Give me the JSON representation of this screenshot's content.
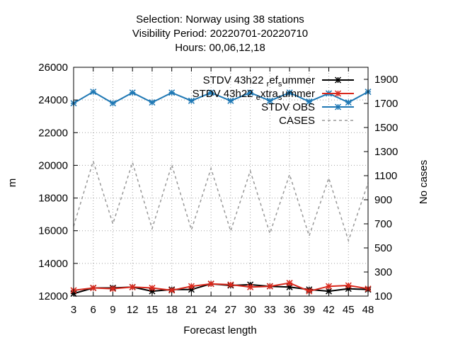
{
  "chart_data": {
    "type": "line",
    "title_lines": [
      "Selection: Norway using    38 stations",
      "Visibility   Period: 20220701-20220710",
      "Hours:  00,06,12,18"
    ],
    "xlabel": "Forecast length",
    "ylabel": "m",
    "y2label": "No cases",
    "x": [
      3,
      6,
      9,
      12,
      15,
      18,
      21,
      24,
      27,
      30,
      33,
      36,
      39,
      42,
      45,
      48
    ],
    "xlim": [
      3,
      48
    ],
    "ylim": [
      12000,
      26000
    ],
    "y2lim": [
      100,
      2000
    ],
    "x_ticks": [
      "3",
      "6",
      "9",
      "12",
      "15",
      "18",
      "21",
      "24",
      "27",
      "30",
      "33",
      "36",
      "39",
      "42",
      "45",
      "48"
    ],
    "y_ticks": [
      "12000",
      "14000",
      "16000",
      "18000",
      "20000",
      "22000",
      "24000",
      "26000"
    ],
    "y2_ticks": [
      "100",
      "300",
      "500",
      "700",
      "900",
      "1100",
      "1300",
      "1500",
      "1700",
      "1900"
    ],
    "grid": true,
    "legend_position": "top-right",
    "series": [
      {
        "name": "STDV 43h22_ref_summer",
        "legend_parts": [
          "STDV 43h22",
          "r",
          "ef",
          "s",
          "ummer"
        ],
        "axis": "y",
        "color": "#000000",
        "marker": "star",
        "dash": "",
        "values": [
          12150,
          12500,
          12500,
          12550,
          12300,
          12400,
          12400,
          12750,
          12650,
          12700,
          12600,
          12550,
          12400,
          12300,
          12450,
          12400
        ]
      },
      {
        "name": "STDV 43h22_extra_summer",
        "legend_parts": [
          "STDV 43h22",
          "e",
          "xtra",
          "s",
          "ummer"
        ],
        "axis": "y",
        "color": "#d9281c",
        "marker": "star",
        "dash": "",
        "values": [
          12350,
          12500,
          12450,
          12550,
          12500,
          12350,
          12600,
          12750,
          12700,
          12550,
          12600,
          12800,
          12300,
          12600,
          12650,
          12450
        ]
      },
      {
        "name": "STDV OBS",
        "legend_parts": [
          "STDV OBS"
        ],
        "axis": "y",
        "color": "#1f78b4",
        "marker": "star",
        "dash": "",
        "values": [
          23800,
          24500,
          23800,
          24450,
          23850,
          24450,
          23950,
          24450,
          23950,
          24450,
          23950,
          24450,
          23900,
          24400,
          23850,
          24500
        ]
      },
      {
        "name": "CASES",
        "legend_parts": [
          "CASES"
        ],
        "axis": "y2",
        "color": "#999999",
        "marker": "none",
        "dash": "4,4",
        "values": [
          680,
          1220,
          700,
          1210,
          660,
          1190,
          650,
          1160,
          640,
          1140,
          620,
          1110,
          600,
          1080,
          560,
          1040
        ]
      }
    ]
  }
}
